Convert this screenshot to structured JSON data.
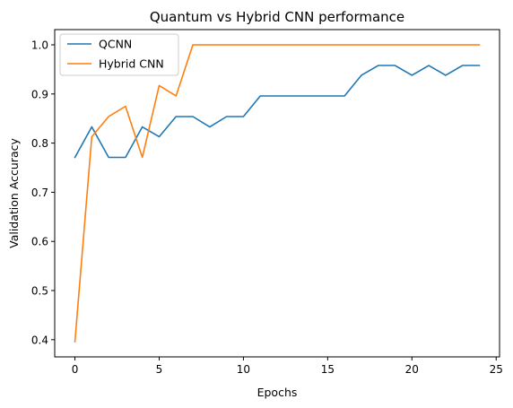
{
  "chart_data": {
    "type": "line",
    "title": "Quantum vs Hybrid CNN performance",
    "xlabel": "Epochs",
    "ylabel": "Validation Accuracy",
    "xlim": [
      -1.2,
      25.2
    ],
    "ylim": [
      0.365,
      1.031
    ],
    "xticks": [
      0,
      5,
      10,
      15,
      20,
      25
    ],
    "yticks": [
      0.4,
      0.5,
      0.6,
      0.7,
      0.8,
      0.9,
      1.0
    ],
    "ytick_labels": [
      "0.4",
      "0.5",
      "0.6",
      "0.7",
      "0.8",
      "0.9",
      "1.0"
    ],
    "grid": false,
    "legend_position": "top-left",
    "x": [
      0,
      1,
      2,
      3,
      4,
      5,
      6,
      7,
      8,
      9,
      10,
      11,
      12,
      13,
      14,
      15,
      16,
      17,
      18,
      19,
      20,
      21,
      22,
      23,
      24
    ],
    "series": [
      {
        "name": "QCNN",
        "color": "#1f77b4",
        "values": [
          0.771,
          0.833,
          0.771,
          0.771,
          0.833,
          0.813,
          0.854,
          0.854,
          0.833,
          0.854,
          0.854,
          0.896,
          0.896,
          0.896,
          0.896,
          0.896,
          0.896,
          0.938,
          0.958,
          0.958,
          0.938,
          0.958,
          0.938,
          0.958,
          0.958
        ]
      },
      {
        "name": "Hybrid CNN",
        "color": "#ff7f0e",
        "values": [
          0.396,
          0.813,
          0.854,
          0.875,
          0.771,
          0.917,
          0.896,
          1.0,
          1.0,
          1.0,
          1.0,
          1.0,
          1.0,
          1.0,
          1.0,
          1.0,
          1.0,
          1.0,
          1.0,
          1.0,
          1.0,
          1.0,
          1.0,
          1.0,
          1.0
        ]
      }
    ]
  }
}
